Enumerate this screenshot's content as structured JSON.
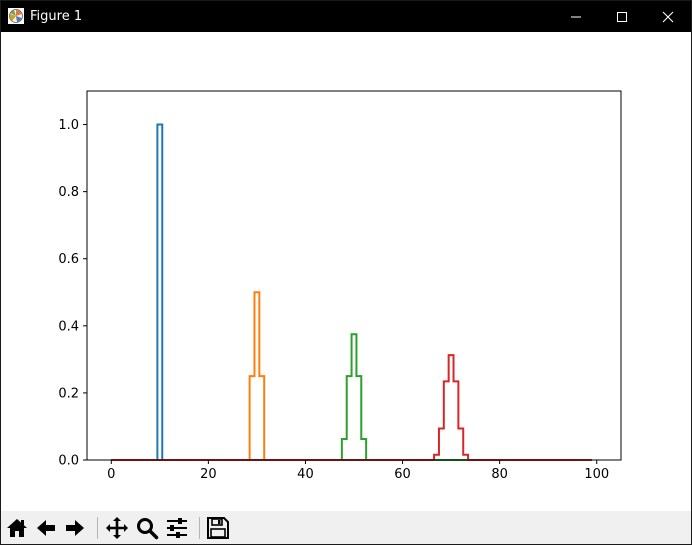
{
  "window": {
    "title": "Figure 1"
  },
  "toolbar": {
    "buttons": [
      {
        "name": "home-button",
        "icon": "home-icon"
      },
      {
        "name": "back-button",
        "icon": "arrow-left-icon"
      },
      {
        "name": "forward-button",
        "icon": "arrow-right-icon"
      },
      {
        "name": "pan-button",
        "icon": "move-icon"
      },
      {
        "name": "zoom-button",
        "icon": "magnifier-icon"
      },
      {
        "name": "configure-subplots-button",
        "icon": "sliders-icon"
      },
      {
        "name": "save-button",
        "icon": "floppy-disk-icon"
      }
    ]
  },
  "chart_data": {
    "type": "line",
    "subtype": "step-histogram",
    "title": "",
    "xlabel": "",
    "ylabel": "",
    "xlim": [
      -5,
      105
    ],
    "ylim": [
      0,
      1.1
    ],
    "xticks": [
      0,
      20,
      40,
      60,
      80,
      100
    ],
    "xtick_labels": [
      "0",
      "20",
      "40",
      "60",
      "80",
      "100"
    ],
    "yticks": [
      0.0,
      0.2,
      0.4,
      0.6,
      0.8,
      1.0
    ],
    "ytick_labels": [
      "0.0",
      "0.2",
      "0.4",
      "0.6",
      "0.8",
      "1.0"
    ],
    "grid": false,
    "legend": false,
    "series": [
      {
        "color": "#1f77b4",
        "x": [
          0,
          9.5,
          9.5,
          10.5,
          10.5,
          99
        ],
        "y": [
          0,
          0,
          1.0,
          1.0,
          0,
          0
        ]
      },
      {
        "color": "#ff7f0e",
        "x": [
          0,
          28.5,
          28.5,
          29.5,
          29.5,
          30.5,
          30.5,
          31.5,
          31.5,
          99
        ],
        "y": [
          0,
          0,
          0.25,
          0.25,
          0.5,
          0.5,
          0.25,
          0.25,
          0,
          0
        ]
      },
      {
        "color": "#2ca02c",
        "x": [
          0,
          47.5,
          47.5,
          48.5,
          48.5,
          49.5,
          49.5,
          50.5,
          50.5,
          51.5,
          51.5,
          52.5,
          52.5,
          99
        ],
        "y": [
          0,
          0,
          0.0625,
          0.0625,
          0.25,
          0.25,
          0.375,
          0.375,
          0.25,
          0.25,
          0.0625,
          0.0625,
          0,
          0
        ]
      },
      {
        "color": "#d62728",
        "x": [
          0,
          66.5,
          66.5,
          67.5,
          67.5,
          68.5,
          68.5,
          69.5,
          69.5,
          70.5,
          70.5,
          71.5,
          71.5,
          72.5,
          72.5,
          73.5,
          73.5,
          99
        ],
        "y": [
          0,
          0,
          0.0156,
          0.0156,
          0.0938,
          0.0938,
          0.2344,
          0.2344,
          0.3125,
          0.3125,
          0.2344,
          0.2344,
          0.0938,
          0.0938,
          0.0156,
          0.0156,
          0,
          0
        ]
      }
    ]
  }
}
